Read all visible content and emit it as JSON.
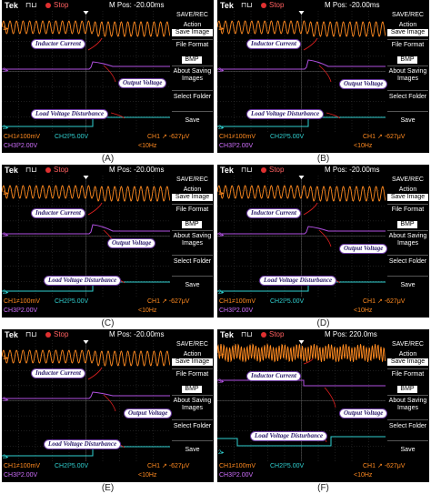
{
  "panels": [
    {
      "letter": "(A)",
      "mpos": "M Pos: -20.00ms",
      "freq": "<10Hz",
      "variant": 0
    },
    {
      "letter": "(B)",
      "mpos": "M Pos: -20.00ms",
      "freq": "<10Hz",
      "variant": 1
    },
    {
      "letter": "(C)",
      "mpos": "M Pos: -20.00ms",
      "freq": "<10Hz",
      "variant": 2
    },
    {
      "letter": "(D)",
      "mpos": "M Pos: -20.00ms",
      "freq": "<10Hz",
      "variant": 3
    },
    {
      "letter": "(E)",
      "mpos": "M Pos: -20.00ms",
      "freq": "<10Hz",
      "variant": 4
    },
    {
      "letter": "(F)",
      "mpos": "M Pos: 220.0ms",
      "freq": "<10Hz",
      "variant": 5
    }
  ],
  "scope": {
    "brand": "Tek",
    "stop": "Stop",
    "menu_title": "SAVE/REC",
    "menu_action": "Action",
    "menu_save_image": "Save Image",
    "menu_file_format": "File Format",
    "menu_bmp": "BMP",
    "menu_about": "About Saving Images",
    "menu_select_folder": "Select Folder",
    "menu_save": "Save",
    "ch1_scale": "CH1≠100mV",
    "ch2_scale": "CH2ℙ5.00V",
    "ch3_scale": "CH3ℙ2.00V",
    "trigger": "CH1 ↗ -627μV"
  },
  "annotations": {
    "inductor_current": "Inductor Current",
    "output_voltage": "Output Voltage",
    "load_disturbance": "Load Voltage Disturbance"
  },
  "colors": {
    "ch1": "#ff8a20",
    "ch2": "#30d0d0",
    "ch3": "#b050e0",
    "label_border": "#6a3aa0"
  }
}
